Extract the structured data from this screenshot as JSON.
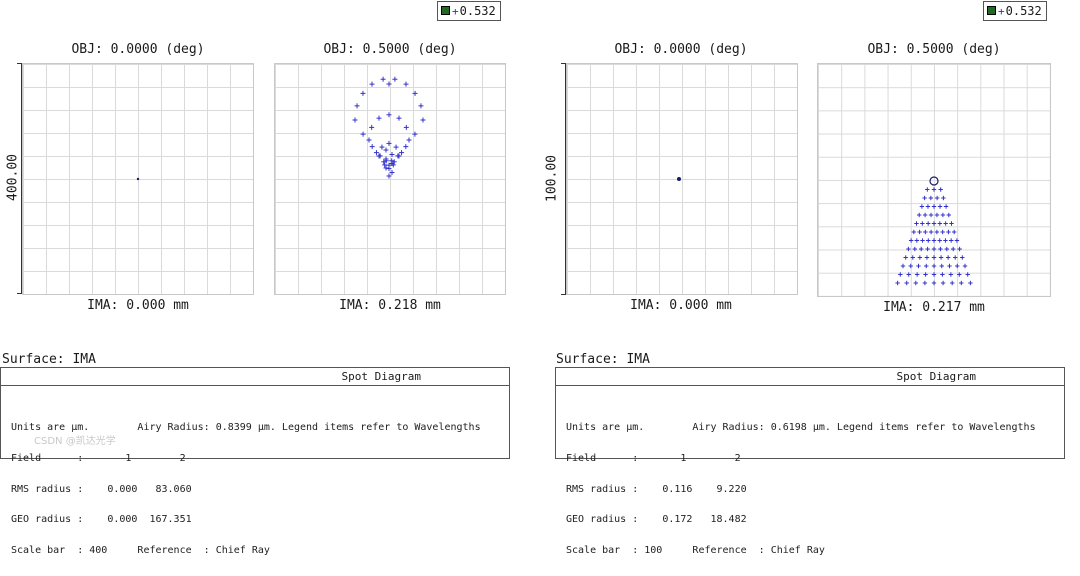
{
  "legend": {
    "wavelength_label": "0.532"
  },
  "diagrams": [
    {
      "scale_label": "400.00",
      "fields": [
        {
          "obj": "OBJ: 0.0000 (deg)",
          "ima": "IMA: 0.000 mm"
        },
        {
          "obj": "OBJ: 0.5000 (deg)",
          "ima": "IMA: 0.218 mm"
        }
      ],
      "surface": "Surface: IMA",
      "panel_title": "Spot Diagram",
      "panel_lines": [
        "Units are µm.        Airy Radius: 0.8399 µm. Legend items refer to Wavelengths",
        "Field      :       1        2",
        "RMS radius :    0.000   83.060",
        "GEO radius :    0.000  167.351",
        "Scale bar  : 400     Reference  : Chief Ray"
      ]
    },
    {
      "scale_label": "100.00",
      "fields": [
        {
          "obj": "OBJ: 0.0000 (deg)",
          "ima": "IMA: 0.000 mm"
        },
        {
          "obj": "OBJ: 0.5000 (deg)",
          "ima": "IMA: 0.217 mm"
        }
      ],
      "surface": "Surface: IMA",
      "panel_title": "Spot Diagram",
      "panel_lines": [
        "Units are µm.        Airy Radius: 0.6198 µm. Legend items refer to Wavelengths",
        "Field      :       1        2",
        "RMS radius :    0.116    9.220",
        "GEO radius :    0.172   18.482",
        "Scale bar  : 100     Reference  : Chief Ray"
      ]
    }
  ],
  "watermark": "CSDN @凯达光学",
  "chart_data": [
    {
      "type": "scatter",
      "title": "Spot Diagram",
      "wavelength_um": 0.532,
      "scale_bar_um": 400,
      "airy_radius_um": 0.8399,
      "fields": [
        "OBJ: 0.0000 (deg)",
        "OBJ: 0.5000 (deg)"
      ],
      "rms_radius_um": [
        0.0,
        83.06
      ],
      "geo_radius_um": [
        0.0,
        167.351
      ],
      "image_height_mm": [
        0.0,
        0.218
      ]
    },
    {
      "type": "scatter",
      "title": "Spot Diagram",
      "wavelength_um": 0.532,
      "scale_bar_um": 100,
      "airy_radius_um": 0.6198,
      "fields": [
        "OBJ: 0.0000 (deg)",
        "OBJ: 0.5000 (deg)"
      ],
      "rms_radius_um": [
        0.116,
        9.22
      ],
      "geo_radius_um": [
        0.172,
        18.482
      ],
      "image_height_mm": [
        0.0,
        0.217
      ]
    }
  ]
}
